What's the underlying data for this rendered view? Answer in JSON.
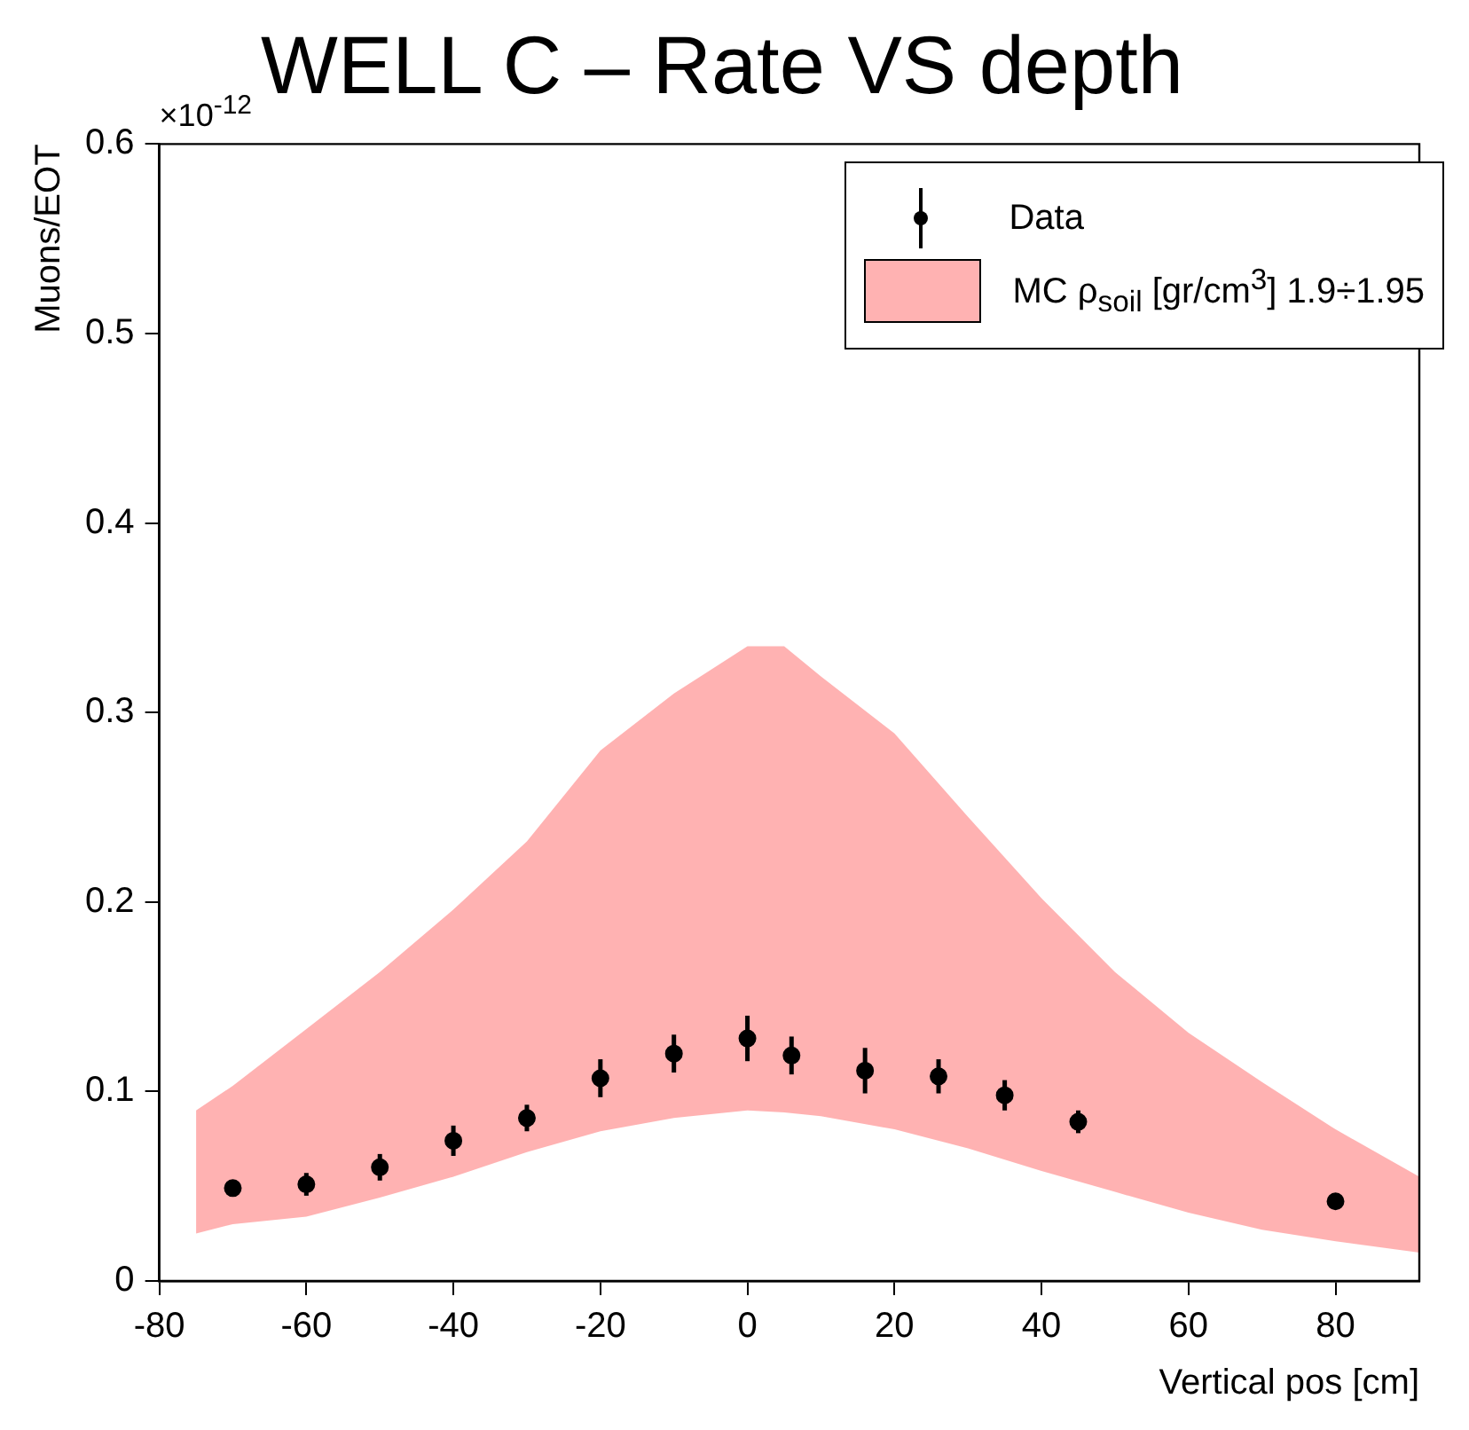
{
  "chart_data": {
    "type": "scatter",
    "title": "WELL C – Rate VS depth",
    "xlabel": "Vertical pos [cm]",
    "ylabel": "Muons/EOT",
    "annotations": [
      "×10$^{-12}$"
    ],
    "xlim": [
      -80,
      91.4
    ],
    "xticks": [
      -80,
      -60,
      -40,
      -20,
      0,
      20,
      40,
      60,
      80
    ],
    "ylim": [
      0,
      0.6
    ],
    "yticks": [
      0,
      0.1,
      0.2,
      0.3,
      0.4,
      0.5,
      0.6
    ],
    "grid": false,
    "legend": "top right",
    "marker": "circle",
    "series": [
      {
        "name": "Data",
        "type": "scatter",
        "color": "#000000",
        "x": [
          -70,
          -60,
          -50,
          -40,
          -30,
          -20,
          -10,
          0,
          6,
          16,
          26,
          35,
          45,
          80
        ],
        "values": [
          0.049,
          0.051,
          0.06,
          0.074,
          0.086,
          0.107,
          0.12,
          0.128,
          0.119,
          0.111,
          0.108,
          0.098,
          0.084,
          0.042
        ],
        "errors": [
          0.004,
          0.006,
          0.007,
          0.008,
          0.007,
          0.01,
          0.01,
          0.012,
          0.01,
          0.012,
          0.009,
          0.008,
          0.006,
          0.004
        ]
      },
      {
        "name": "MC ρ$_{soil}$ [gr/cm$^{3}$] 1.9÷1.95",
        "type": "area",
        "color": "#ff0000",
        "x": [
          -75,
          -70,
          -60,
          -50,
          -40,
          -30,
          -20,
          -10,
          0,
          5,
          10,
          20,
          30,
          40,
          50,
          60,
          70,
          80,
          91.4
        ],
        "values": [
          null,
          null,
          null,
          null,
          null,
          null,
          null,
          null,
          null,
          null,
          null,
          null,
          null,
          null,
          null,
          null,
          null,
          null,
          null
        ],
        "lower": [
          0.025,
          0.03,
          0.034,
          0.044,
          0.055,
          0.068,
          0.079,
          0.086,
          0.09,
          0.089,
          0.087,
          0.08,
          0.07,
          0.058,
          0.047,
          0.036,
          0.027,
          0.021,
          0.015
        ],
        "upper": [
          0.09,
          0.103,
          0.133,
          0.163,
          0.196,
          0.232,
          0.28,
          0.31,
          0.335,
          0.335,
          0.319,
          0.289,
          0.245,
          0.202,
          0.163,
          0.131,
          0.105,
          0.08,
          0.055
        ]
      }
    ]
  }
}
